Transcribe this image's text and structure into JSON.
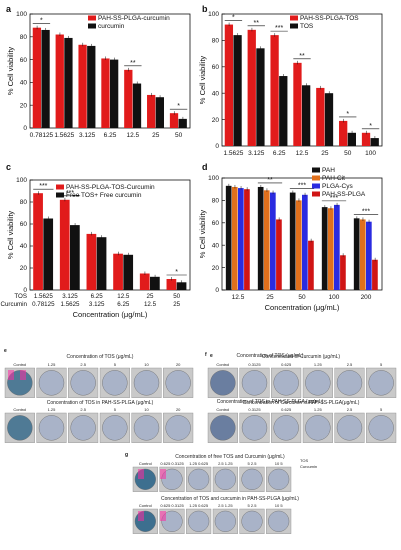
{
  "chart_data": [
    {
      "panel": "a",
      "type": "bar",
      "categories": [
        "0.78125",
        "1.5625",
        "3.125",
        "6.25",
        "12.5",
        "25",
        "50"
      ],
      "series": [
        {
          "name": "PAH-SS-PLGA-curcumin",
          "values": [
            88,
            82,
            73,
            61,
            51,
            29,
            13
          ],
          "color": "#e11b1b"
        },
        {
          "name": "curcumin",
          "values": [
            86,
            79,
            72,
            60,
            39,
            27,
            8
          ],
          "color": "#111111"
        }
      ],
      "ylabel": "% Cell viability",
      "ylim": [
        0,
        100
      ],
      "yticks": [
        "0",
        "20",
        "40",
        "60",
        "80",
        "100"
      ],
      "significance": [
        {
          "category": 0,
          "text": "*"
        },
        {
          "category": 4,
          "text": "**"
        },
        {
          "category": 6,
          "text": "*"
        }
      ]
    },
    {
      "panel": "b",
      "type": "bar",
      "categories": [
        "1.5625",
        "3.125",
        "6.25",
        "12.5",
        "25",
        "50",
        "100"
      ],
      "series": [
        {
          "name": "PAH-SS-PLGA-TOS",
          "values": [
            92,
            88,
            84,
            63,
            44,
            19,
            10
          ],
          "color": "#e11b1b"
        },
        {
          "name": "TOS",
          "values": [
            84,
            74,
            53,
            46,
            40,
            10,
            6
          ],
          "color": "#111111"
        }
      ],
      "ylabel": "% Cell viability",
      "ylim": [
        0,
        100
      ],
      "yticks": [
        "0",
        "20",
        "40",
        "60",
        "80",
        "100"
      ],
      "significance": [
        {
          "category": 0,
          "text": "*"
        },
        {
          "category": 1,
          "text": "**"
        },
        {
          "category": 2,
          "text": "***"
        },
        {
          "category": 3,
          "text": "**"
        },
        {
          "category": 5,
          "text": "*"
        },
        {
          "category": 6,
          "text": "*"
        }
      ]
    },
    {
      "panel": "c",
      "type": "bar",
      "categories": [
        "1.5625",
        "3.125",
        "6.25",
        "12.5",
        "25",
        "50"
      ],
      "categories2": [
        "0.78125",
        "1.5625",
        "3.125",
        "6.25",
        "12.5",
        "25"
      ],
      "row_labels": [
        "TOS",
        "Curcumin"
      ],
      "series": [
        {
          "name": "PAH-SS-PLGA-TOS-Curcumin",
          "values": [
            88,
            82,
            51,
            33,
            15,
            10
          ],
          "color": "#e11b1b"
        },
        {
          "name": "Free TOS+ Free curcumin",
          "values": [
            65,
            59,
            48,
            32,
            12,
            7
          ],
          "color": "#111111"
        }
      ],
      "xlabel": "Concentration (μg/mL)",
      "ylabel": "% Cell viability",
      "ylim": [
        0,
        100
      ],
      "yticks": [
        "0",
        "20",
        "40",
        "60",
        "80",
        "100"
      ],
      "significance": [
        {
          "category": 0,
          "text": "***"
        },
        {
          "category": 1,
          "text": "***"
        },
        {
          "category": 5,
          "text": "*"
        }
      ]
    },
    {
      "panel": "d",
      "type": "bar",
      "categories": [
        "12.5",
        "25",
        "50",
        "100",
        "200"
      ],
      "series": [
        {
          "name": "PAH",
          "values": [
            93,
            92,
            87,
            74,
            64
          ],
          "color": "#111111"
        },
        {
          "name": "PAH-Cit",
          "values": [
            92,
            89,
            80,
            73,
            63
          ],
          "color": "#e0701c"
        },
        {
          "name": "PLGA-Cys",
          "values": [
            91,
            87,
            85,
            76,
            61
          ],
          "color": "#2a2be0"
        },
        {
          "name": "PAH-SS-PLGA",
          "values": [
            90,
            63,
            44,
            31,
            27
          ],
          "color": "#d01515"
        }
      ],
      "xlabel": "Concentration (μg/mL)",
      "ylabel": "% Cell viability",
      "ylim": [
        0,
        100
      ],
      "yticks": [
        "0",
        "20",
        "40",
        "60",
        "80",
        "100"
      ],
      "significance": [
        {
          "category": 1,
          "text": "**"
        },
        {
          "category": 2,
          "text": "***"
        },
        {
          "category": 3,
          "text": "***"
        },
        {
          "category": 4,
          "text": "***"
        }
      ]
    }
  ],
  "panels": {
    "a": "a",
    "b": "b",
    "c": "c",
    "d": "d",
    "e": "e",
    "f": "f",
    "g": "g"
  },
  "colonies": {
    "e": {
      "top_title": "Concentration of TOS (μg/mL)",
      "top_labels": [
        "Control",
        "1.25",
        "2.5",
        "5",
        "10",
        "20"
      ],
      "bottom_title": "Concentration of TOS in PAH-SS-PLGA (μg/mL)",
      "bottom_labels": [
        "Control",
        "1.25",
        "2.5",
        "5",
        "10",
        "20"
      ]
    },
    "f": {
      "top_title": "Concentration of Curcumin (μg/mL)",
      "top_labels": [
        "Control",
        "0.3125",
        "0.625",
        "1.25",
        "2.5",
        "5"
      ],
      "bottom_title": "Concentration of Curcumin in PAH-SS-PLGA(μg/mL)",
      "bottom_labels": [
        "Control",
        "0.3125",
        "0.625",
        "1.25",
        "2.5",
        "5"
      ]
    },
    "g": {
      "top_title": "Concentration of free TOS and Curcumin (μg/mL)",
      "bottom_title": "Concentration of TOS and curcumin in PAH-SS-PLGA (μg/mL)",
      "labels": [
        "Control",
        "0.625 0.3125",
        "1.25 0.625",
        "2.5 1.25",
        "5 2.5",
        "10 5"
      ],
      "legend": [
        "TOS",
        "Curcumin"
      ]
    }
  }
}
